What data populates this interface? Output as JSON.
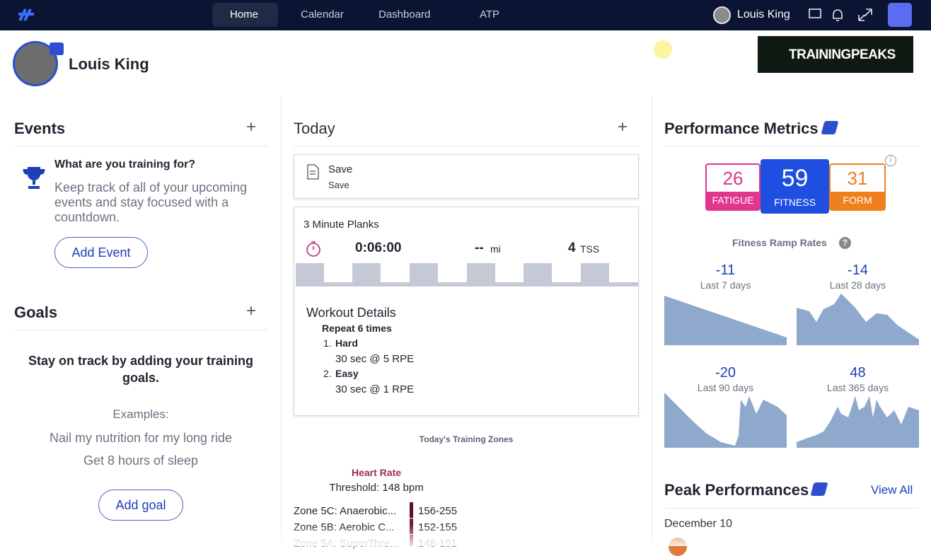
{
  "nav": {
    "items": [
      "Home",
      "Calendar",
      "Dashboard",
      "ATP"
    ],
    "user": "Louis King"
  },
  "profile": {
    "name": "Louis King",
    "logo": "TRAININGPEAKS"
  },
  "events": {
    "title": "Events",
    "prompt": "What are you training for?",
    "description": "Keep track of all of your upcoming events and stay focused with a countdown.",
    "button": "Add Event"
  },
  "goals": {
    "title": "Goals",
    "heading": "Stay on track by adding your training goals.",
    "examples_label": "Examples:",
    "examples": [
      "Nail my nutrition for my long ride",
      "Get 8 hours of sleep"
    ],
    "button": "Add goal"
  },
  "today": {
    "title": "Today",
    "note": {
      "title": "Save",
      "subtitle": "Save"
    },
    "workout": {
      "name": "3 Minute Planks",
      "duration": "0:06:00",
      "distance": "--",
      "distance_unit": "mi",
      "tss": 4,
      "tss_unit": "TSS",
      "details_title": "Workout Details",
      "repeat": "Repeat 6 times",
      "steps": [
        {
          "number": "1.",
          "name": "Hard",
          "detail": "30 sec @ 5 RPE"
        },
        {
          "number": "2.",
          "name": "Easy",
          "detail": "30 sec @ 1 RPE"
        }
      ]
    },
    "zones": {
      "title": "Today's Training Zones",
      "metric": "Heart Rate",
      "threshold": "Threshold: 148 bpm",
      "rows": [
        {
          "name": "Zone 5C: Anaerobic...",
          "range": "156-255"
        },
        {
          "name": "Zone 5B: Aerobic C...",
          "range": "152-155"
        },
        {
          "name": "Zone 5A: SuperThre...",
          "range": "148-151"
        }
      ]
    }
  },
  "performance": {
    "title": "Performance Metrics",
    "fatigue": {
      "value": 26,
      "label": "FATIGUE"
    },
    "fitness": {
      "value": 59,
      "label": "FITNESS"
    },
    "form": {
      "value": 31,
      "label": "FORM"
    },
    "ramp_title": "Fitness Ramp Rates",
    "ramps": [
      {
        "value": -11,
        "label": "Last 7 days"
      },
      {
        "value": -14,
        "label": "Last 28 days"
      },
      {
        "value": -20,
        "label": "Last 90 days"
      },
      {
        "value": 48,
        "label": "Last 365 days"
      }
    ]
  },
  "peak": {
    "title": "Peak Performances",
    "link": "View All",
    "date": "December 10"
  }
}
